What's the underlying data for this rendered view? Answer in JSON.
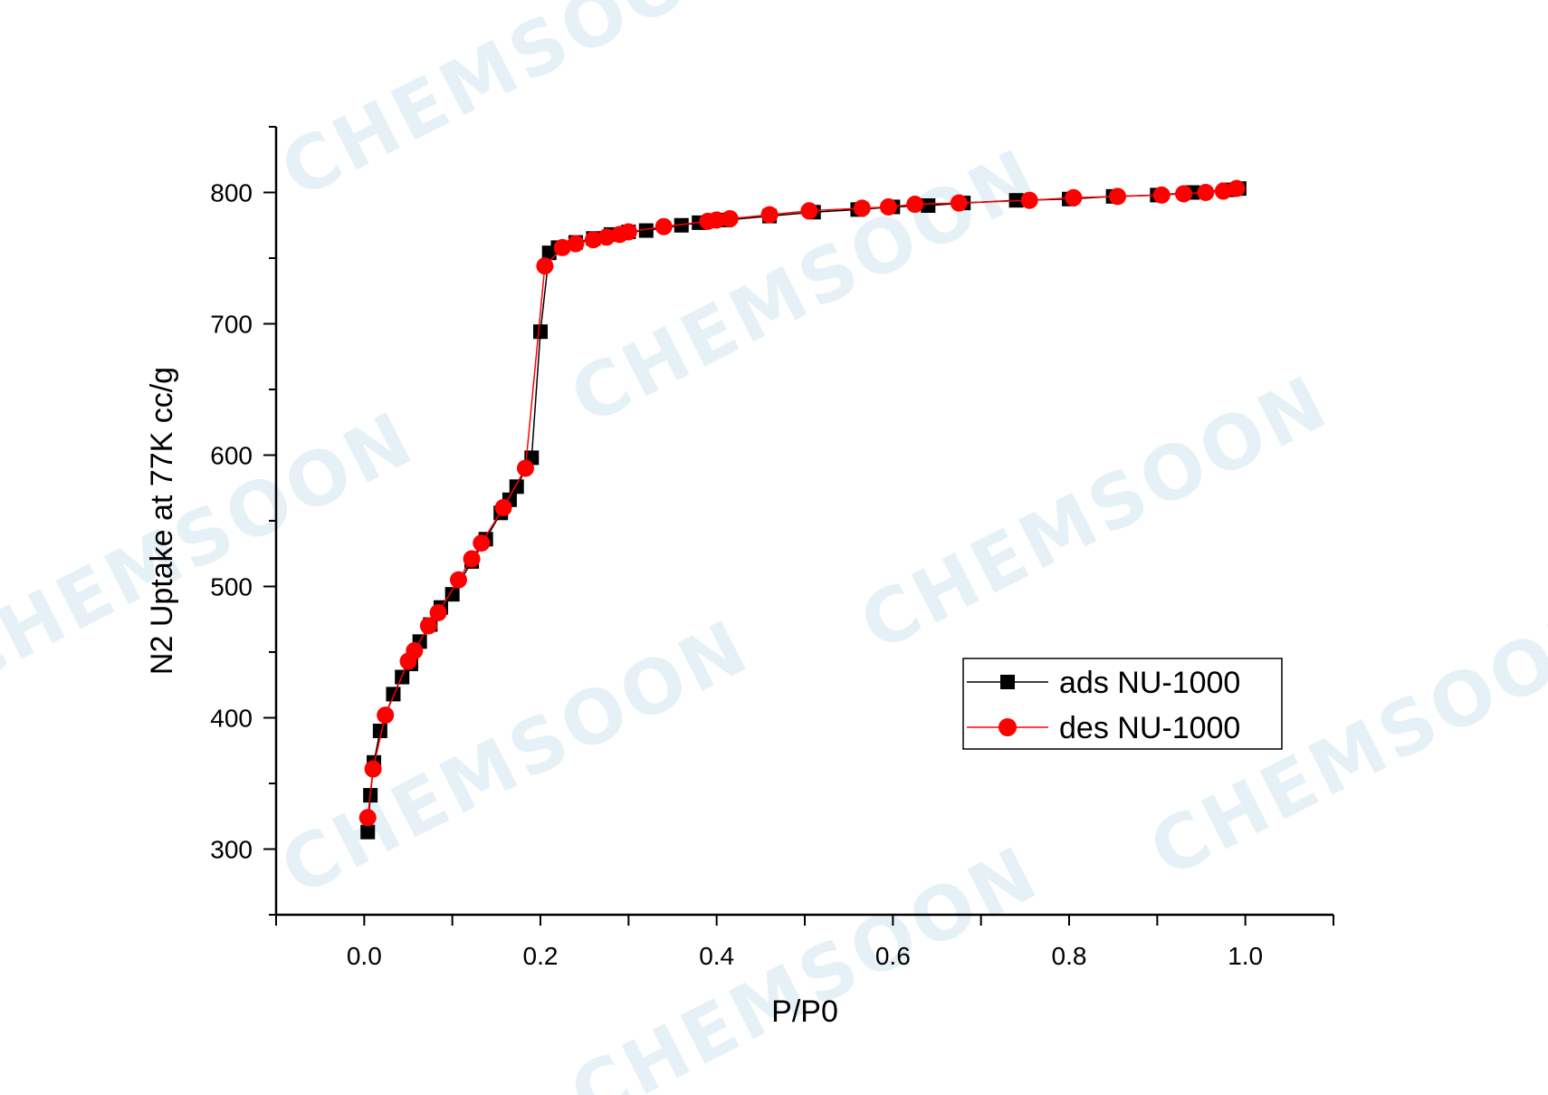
{
  "watermark": {
    "text": "CHEMSOON",
    "color": "#e5f1f7"
  },
  "chart_data": {
    "type": "scatter",
    "xlabel": "P/P0",
    "ylabel": "N2 Uptake at 77K cc/g",
    "xlim": [
      -0.1,
      1.1
    ],
    "ylim": [
      250,
      850
    ],
    "xticks": [
      "0.0",
      "0.2",
      "0.4",
      "0.6",
      "0.8",
      "1.0"
    ],
    "yticks": [
      "300",
      "400",
      "500",
      "600",
      "700",
      "800"
    ],
    "legend_position": "right-center",
    "series": [
      {
        "name": "ads NU-1000",
        "color": "#000000",
        "marker": "square",
        "x": [
          0.004,
          0.007,
          0.011,
          0.018,
          0.033,
          0.043,
          0.053,
          0.063,
          0.075,
          0.087,
          0.1,
          0.122,
          0.138,
          0.155,
          0.165,
          0.173,
          0.19,
          0.2,
          0.21,
          0.22,
          0.24,
          0.26,
          0.28,
          0.3,
          0.32,
          0.36,
          0.38,
          0.41,
          0.46,
          0.51,
          0.56,
          0.6,
          0.64,
          0.68,
          0.74,
          0.8,
          0.85,
          0.9,
          0.94,
          0.98,
          0.993
        ],
        "y": [
          313,
          341,
          366,
          390,
          418,
          431,
          441,
          458,
          471,
          484,
          494,
          519,
          536,
          556,
          566,
          576,
          598,
          694,
          754,
          758,
          762,
          765,
          768,
          770,
          771,
          775,
          777,
          779,
          782,
          785,
          787,
          789,
          790,
          792,
          794,
          795,
          797,
          798,
          800,
          802,
          803
        ]
      },
      {
        "name": "des NU-1000",
        "color": "#ff0000",
        "marker": "circle",
        "x": [
          0.004,
          0.01,
          0.024,
          0.05,
          0.057,
          0.073,
          0.084,
          0.107,
          0.122,
          0.133,
          0.158,
          0.183,
          0.205,
          0.225,
          0.24,
          0.26,
          0.275,
          0.29,
          0.3,
          0.34,
          0.39,
          0.4,
          0.415,
          0.46,
          0.505,
          0.565,
          0.595,
          0.625,
          0.675,
          0.755,
          0.805,
          0.855,
          0.905,
          0.93,
          0.955,
          0.975,
          0.99
        ],
        "y": [
          324,
          361,
          402,
          443,
          451,
          470,
          480,
          505,
          521,
          533,
          560,
          590,
          744,
          758,
          761,
          764,
          766,
          768,
          770,
          774,
          778,
          779,
          780,
          783,
          786,
          788,
          789,
          791,
          792,
          794,
          796,
          797,
          798,
          799,
          800,
          801,
          803
        ]
      }
    ]
  }
}
